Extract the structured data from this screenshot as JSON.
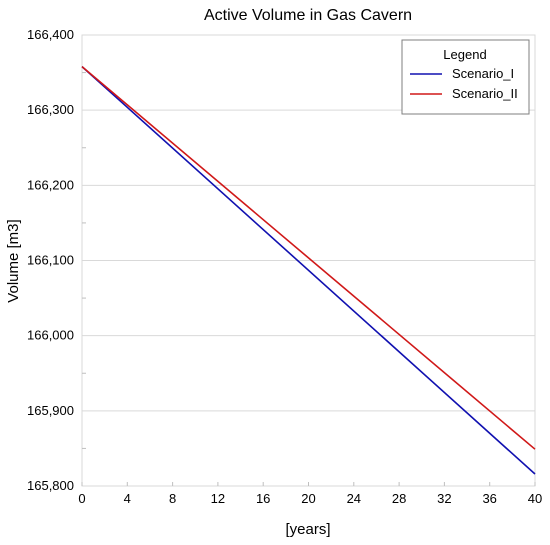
{
  "chart_data": {
    "type": "line",
    "title": "Active Volume in Gas Cavern",
    "xlabel": "[years]",
    "ylabel": "Volume [m3]",
    "xlim": [
      0,
      40
    ],
    "ylim": [
      165800,
      166400
    ],
    "x_ticks": [
      0,
      4,
      8,
      12,
      16,
      20,
      24,
      28,
      32,
      36,
      40
    ],
    "y_ticks": [
      165800,
      165900,
      166000,
      166100,
      166200,
      166300,
      166400
    ],
    "y_tick_labels": [
      "165,800",
      "165,900",
      "166,000",
      "166,100",
      "166,200",
      "166,300",
      "166,400"
    ],
    "grid": "horizontal",
    "legend": {
      "title": "Legend",
      "placement": "top-right"
    },
    "series": [
      {
        "name": "Scenario_I",
        "color": "#1010b0",
        "x": [
          0,
          40
        ],
        "y": [
          166358,
          165816
        ]
      },
      {
        "name": "Scenario_II",
        "color": "#d01818",
        "x": [
          0,
          40
        ],
        "y": [
          166358,
          165849
        ]
      }
    ]
  }
}
